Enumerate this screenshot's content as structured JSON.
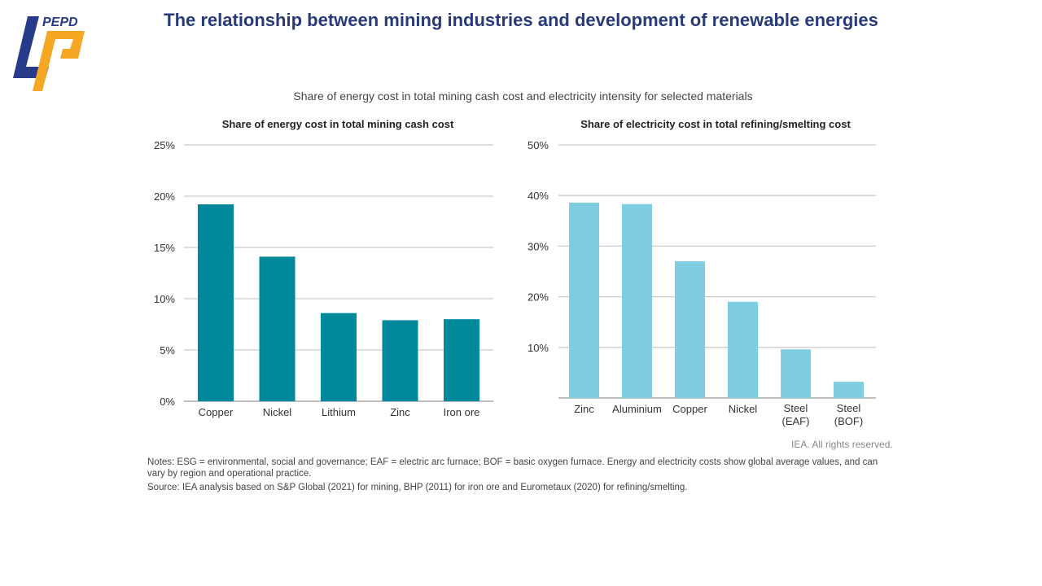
{
  "header": {
    "title": "The relationship between mining industries and development of renewable energies",
    "logo_text": "PEPD"
  },
  "figure": {
    "subtitle": "Share of energy cost in total mining cash cost and electricity intensity for selected materials",
    "credit": "IEA. All rights reserved.",
    "notes": "Notes: ESG = environmental, social and governance; EAF = electric arc furnace; BOF = basic oxygen furnace. Energy and electricity costs show global average values, and can vary by region and operational practice.",
    "source": "Source: IEA analysis based on S&P Global (2021) for mining, BHP (2011) for iron ore and Eurometaux (2020) for refining/smelting."
  },
  "colors": {
    "title": "#283a7a",
    "left_bars": "#00889b",
    "right_bars": "#7ecde1",
    "logo_blue": "#283a8a",
    "logo_orange": "#f5a623"
  },
  "chart_data": [
    {
      "type": "bar",
      "title": "Share of energy cost in total mining cash cost",
      "categories": [
        "Copper",
        "Nickel",
        "Lithium",
        "Zinc",
        "Iron ore"
      ],
      "values": [
        19.2,
        14.1,
        8.6,
        7.9,
        8.0
      ],
      "ylim": [
        0,
        25
      ],
      "yticks": [
        0,
        5,
        10,
        15,
        20,
        25
      ],
      "ytick_labels": [
        "0%",
        "5%",
        "10%",
        "15%",
        "20%",
        "25%"
      ],
      "grid": true
    },
    {
      "type": "bar",
      "title": "Share of electricity cost in total refining/smelting cost",
      "categories": [
        "Zinc",
        "Aluminium",
        "Copper",
        "Nickel",
        "Steel (EAF)",
        "Steel (BOF)"
      ],
      "values": [
        38.6,
        38.3,
        27.0,
        19.0,
        9.6,
        3.2
      ],
      "ylim": [
        0,
        50
      ],
      "yticks": [
        10,
        20,
        30,
        40,
        50
      ],
      "ytick_labels": [
        "10%",
        "20%",
        "30%",
        "40%",
        "50%"
      ],
      "grid": true
    }
  ]
}
